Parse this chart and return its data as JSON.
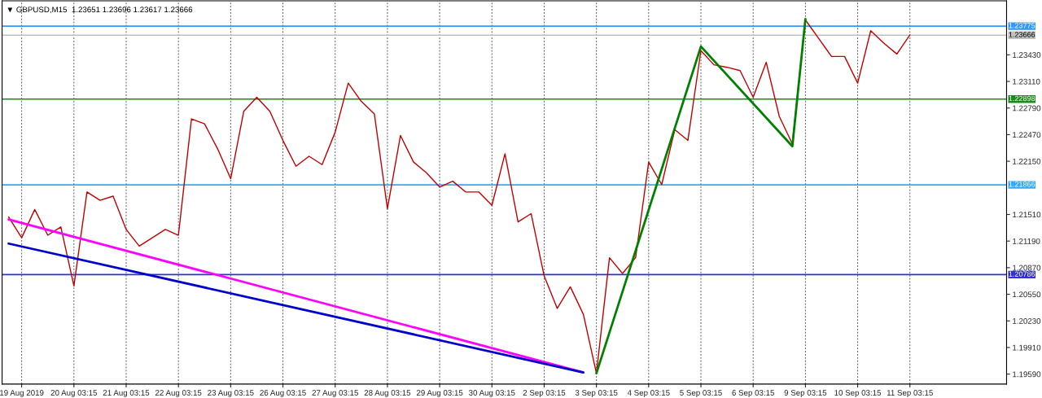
{
  "chart_data": {
    "type": "line",
    "title": "▼ GBPUSD,M15  1.23651 1.23696 1.23617 1.23666",
    "categories": [
      null,
      "19 Aug 2019",
      null,
      null,
      null,
      "20 Aug 03:15",
      null,
      null,
      null,
      "21 Aug 03:15",
      null,
      null,
      null,
      "22 Aug 03:15",
      null,
      null,
      null,
      "23 Aug 03:15",
      null,
      null,
      null,
      "26 Aug 03:15",
      null,
      null,
      null,
      "27 Aug 03:15",
      null,
      null,
      null,
      "28 Aug 03:15",
      null,
      null,
      null,
      "29 Aug 03:15",
      null,
      null,
      null,
      "30 Aug 03:15",
      null,
      null,
      null,
      "2 Sep 03:15",
      null,
      null,
      null,
      "3 Sep 03:15",
      null,
      null,
      null,
      "4 Sep 03:15",
      null,
      null,
      null,
      "5 Sep 03:15",
      null,
      null,
      null,
      "6 Sep 03:15",
      null,
      null,
      null,
      "9 Sep 03:15",
      null,
      null,
      null,
      "10 Sep 03:15",
      null,
      null,
      null,
      "11 Sep 03:15"
    ],
    "ylim": [
      1.1947,
      1.2408
    ],
    "yticks": [
      {
        "value": 1.1959,
        "label": "1.19590"
      },
      {
        "value": 1.1991,
        "label": "1.19910"
      },
      {
        "value": 1.2023,
        "label": "1.20230"
      },
      {
        "value": 1.2055,
        "label": "1.20550"
      },
      {
        "value": 1.2087,
        "label": "1.20870"
      },
      {
        "value": 1.2119,
        "label": "1.21190"
      },
      {
        "value": 1.2151,
        "label": "1.21510"
      },
      {
        "value": 1.2215,
        "label": "1.22150"
      },
      {
        "value": 1.2247,
        "label": "1.22470"
      },
      {
        "value": 1.2279,
        "label": "1.22790"
      },
      {
        "value": 1.2311,
        "label": "1.23110"
      },
      {
        "value": 1.2343,
        "label": "1.23430"
      }
    ],
    "grid": "x",
    "ref_lines": [
      {
        "axis": "y",
        "value": 1.23775,
        "label": "1.23775",
        "color": "#3399ff"
      },
      {
        "axis": "y",
        "value": 1.23666,
        "label": "1.23666",
        "color": "#c0c0c0"
      },
      {
        "axis": "y",
        "value": 1.22898,
        "label": "1.22898",
        "color": "#1a8a1a"
      },
      {
        "axis": "y",
        "value": 1.21866,
        "label": "1.21866",
        "color": "#33aaff"
      },
      {
        "axis": "y",
        "value": 1.20786,
        "label": "1.20786",
        "color": "#3333cc"
      }
    ],
    "series": [
      {
        "color": "#c00000",
        "values": [
          1.2148,
          1.2123,
          1.2157,
          1.2126,
          1.2136,
          1.2065,
          1.2178,
          1.2168,
          1.2173,
          1.2133,
          1.2113,
          1.2123,
          1.2133,
          1.2126,
          1.2266,
          1.226,
          1.223,
          1.2194,
          1.2275,
          1.2292,
          1.2275,
          1.224,
          1.2209,
          1.2221,
          1.2211,
          1.225,
          1.2309,
          1.2287,
          1.2272,
          1.2158,
          1.2246,
          1.2214,
          1.2201,
          1.2184,
          1.2191,
          1.2178,
          1.2178,
          1.2162,
          1.2224,
          1.2142,
          1.2152,
          1.2077,
          1.2038,
          1.2064,
          1.2031,
          1.196,
          1.2099,
          1.208,
          1.2099,
          1.2214,
          1.2187,
          1.2253,
          1.224,
          1.2348,
          1.2331,
          1.2328,
          1.2324,
          1.2292,
          1.2334,
          1.2269,
          1.2236,
          1.2385,
          1.2363,
          1.2341,
          1.2341,
          1.2309,
          1.2372,
          1.2357,
          1.2344,
          1.2367
        ]
      },
      {
        "color": "#ff00ff",
        "values": [
          1.2145,
          null,
          null,
          null,
          null,
          null,
          null,
          null,
          null,
          null,
          null,
          null,
          null,
          null,
          null,
          null,
          null,
          null,
          null,
          null,
          null,
          null,
          null,
          null,
          null,
          null,
          null,
          null,
          null,
          null,
          null,
          null,
          null,
          null,
          null,
          null,
          null,
          null,
          null,
          null,
          null,
          null,
          null,
          null,
          1.1961,
          null,
          null,
          null,
          null,
          null,
          null,
          null,
          null,
          null,
          null,
          null,
          null,
          null,
          null,
          null,
          null,
          null,
          null,
          null,
          null,
          null,
          null,
          null,
          null,
          null
        ]
      },
      {
        "color": "#0000cc",
        "values": [
          1.2116,
          null,
          null,
          null,
          null,
          null,
          null,
          null,
          null,
          null,
          null,
          null,
          null,
          null,
          null,
          null,
          null,
          null,
          null,
          null,
          null,
          null,
          null,
          null,
          null,
          null,
          null,
          null,
          null,
          null,
          null,
          null,
          null,
          null,
          null,
          null,
          null,
          null,
          null,
          null,
          null,
          null,
          null,
          null,
          1.1961,
          null,
          null,
          null,
          null,
          null,
          null,
          null,
          null,
          null,
          null,
          null,
          null,
          null,
          null,
          null,
          null,
          null,
          null,
          null,
          null,
          null,
          null,
          null,
          null,
          null
        ]
      },
      {
        "color": "#008000",
        "values": [
          null,
          null,
          null,
          null,
          null,
          null,
          null,
          null,
          null,
          null,
          null,
          null,
          null,
          null,
          null,
          null,
          null,
          null,
          null,
          null,
          null,
          null,
          null,
          null,
          null,
          null,
          null,
          null,
          null,
          null,
          null,
          null,
          null,
          null,
          null,
          null,
          null,
          null,
          null,
          null,
          null,
          null,
          null,
          null,
          null,
          1.196,
          null,
          null,
          null,
          null,
          null,
          null,
          null,
          1.2353,
          null,
          null,
          null,
          null,
          null,
          null,
          1.2233,
          1.2386,
          null,
          null,
          null,
          null,
          null,
          null,
          null,
          null
        ]
      }
    ]
  }
}
